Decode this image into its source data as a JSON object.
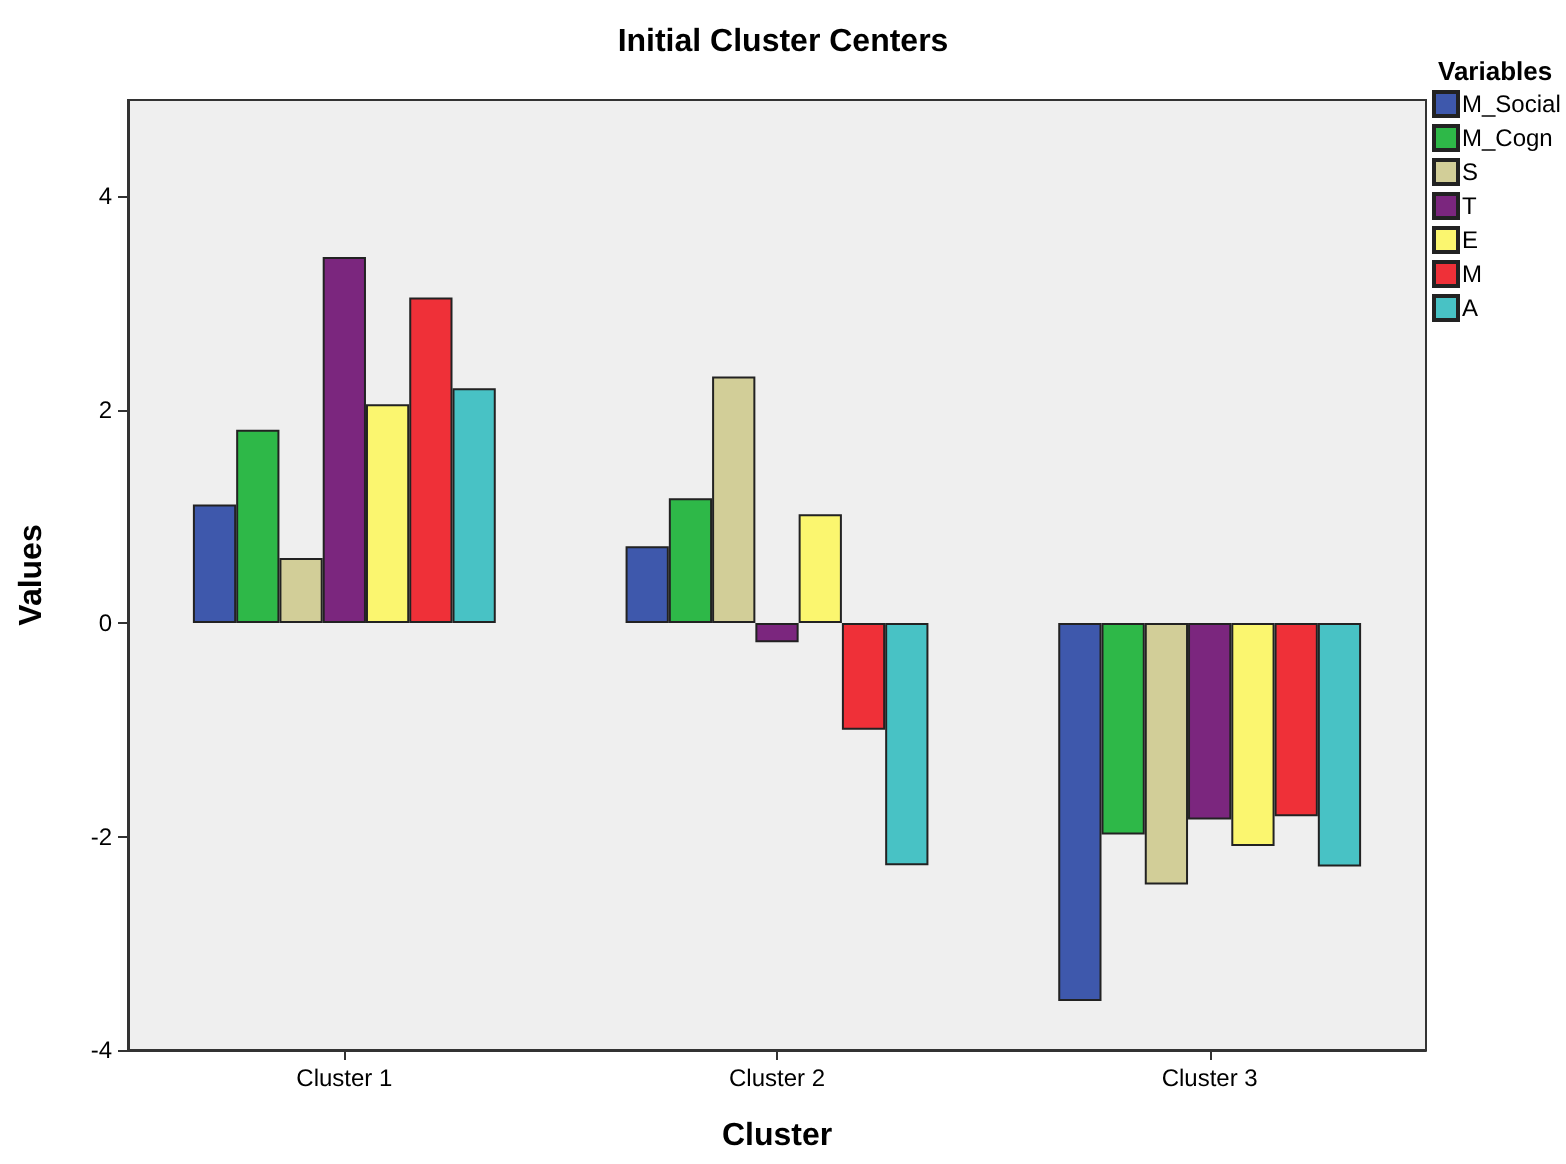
{
  "chart_data": {
    "type": "bar",
    "title": "Initial Cluster Centers",
    "xlabel": "Cluster",
    "ylabel": "Values",
    "legend_title": "Variables",
    "categories": [
      "Cluster 1",
      "Cluster 2",
      "Cluster 3"
    ],
    "series": [
      {
        "name": "M_Social",
        "color": "#3e58ac",
        "values": [
          1.11,
          0.72,
          -3.54
        ]
      },
      {
        "name": "M_Cogn",
        "color": "#2eb848",
        "values": [
          1.81,
          1.17,
          -1.98
        ]
      },
      {
        "name": "S",
        "color": "#d2ce98",
        "values": [
          0.61,
          2.31,
          -2.45
        ]
      },
      {
        "name": "T",
        "color": "#7b267e",
        "values": [
          3.43,
          -0.18,
          -1.84
        ]
      },
      {
        "name": "E",
        "color": "#fbf66f",
        "values": [
          2.05,
          1.02,
          -2.09
        ]
      },
      {
        "name": "M",
        "color": "#ef3038",
        "values": [
          3.05,
          -1.0,
          -1.81
        ]
      },
      {
        "name": "A",
        "color": "#48c2c5",
        "values": [
          2.2,
          -2.27,
          -2.28
        ]
      }
    ],
    "ylim": [
      -4,
      4.9
    ],
    "yticks": [
      -4,
      -2,
      0,
      2,
      4
    ],
    "grid": false,
    "legend": "top right"
  }
}
